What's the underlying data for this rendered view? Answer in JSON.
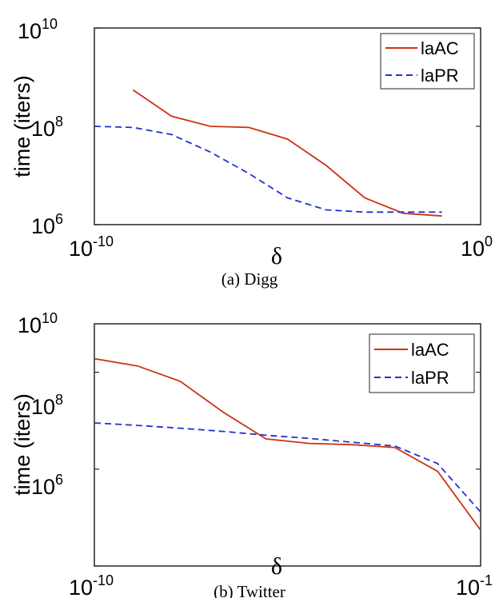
{
  "chart_data": [
    {
      "type": "line",
      "caption": "(a) Digg",
      "xlabel": "δ",
      "ylabel": "time (iters)",
      "xscale": "log",
      "yscale": "log",
      "xlim": [
        1e-10,
        1
      ],
      "ylim": [
        1000000.0,
        10000000000.0
      ],
      "xtick_labels": [
        {
          "base": "10",
          "exp": "-10"
        },
        {
          "base": "10",
          "exp": "0"
        }
      ],
      "ytick_labels": [
        {
          "base": "10",
          "exp": "10"
        },
        {
          "base": "10",
          "exp": "8"
        },
        {
          "base": "10",
          "exp": "6"
        }
      ],
      "legend_position": "top-right",
      "series": [
        {
          "name": "laAC",
          "color": "#cc3311",
          "dash": "solid",
          "x": [
            1e-09,
            1e-08,
            1e-07,
            1e-06,
            1e-05,
            0.0001,
            0.001,
            0.01,
            0.1
          ],
          "y": [
            550000000.0,
            160000000.0,
            100000000.0,
            95000000.0,
            55000000.0,
            16000000.0,
            3500000.0,
            1700000.0,
            1500000.0
          ]
        },
        {
          "name": "laPR",
          "color": "#2233cc",
          "dash": "dashed",
          "x": [
            1e-10,
            1e-09,
            1e-08,
            1e-07,
            1e-06,
            1e-05,
            0.0001,
            0.001,
            0.01,
            0.1
          ],
          "y": [
            100000000.0,
            95000000.0,
            68000000.0,
            30000000.0,
            11000000.0,
            3500000.0,
            2000000.0,
            1800000.0,
            1800000.0,
            1800000.0
          ]
        }
      ]
    },
    {
      "type": "line",
      "caption": "(b) Twitter",
      "xlabel": "δ",
      "ylabel": "time (iters)",
      "xscale": "log",
      "yscale": "log",
      "xlim": [
        1e-10,
        0.1
      ],
      "ylim": [
        100000.0,
        10000000000.0
      ],
      "xtick_labels": [
        {
          "base": "10",
          "exp": "-10"
        },
        {
          "base": "10",
          "exp": "-1"
        }
      ],
      "ytick_labels": [
        {
          "base": "10",
          "exp": "10"
        },
        {
          "base": "10",
          "exp": "8"
        },
        {
          "base": "10",
          "exp": "6"
        }
      ],
      "legend_position": "top-right",
      "series": [
        {
          "name": "laAC",
          "color": "#cc3311",
          "dash": "solid",
          "x": [
            1e-10,
            1e-09,
            1e-08,
            1e-07,
            1e-06,
            1e-05,
            0.0001,
            0.001,
            0.01,
            0.1
          ],
          "y": [
            1900000000.0,
            1350000000.0,
            650000000.0,
            150000000.0,
            42000000.0,
            34000000.0,
            32000000.0,
            28000000.0,
            9000000.0,
            550000.0
          ]
        },
        {
          "name": "laPR",
          "color": "#2233cc",
          "dash": "dashed",
          "x": [
            1e-10,
            1e-09,
            1e-08,
            1e-07,
            1e-06,
            1e-05,
            0.0001,
            0.001,
            0.01,
            0.1
          ],
          "y": [
            90000000.0,
            80000000.0,
            70000000.0,
            60000000.0,
            50000000.0,
            43000000.0,
            36000000.0,
            30000000.0,
            13000000.0,
            1300000.0
          ]
        }
      ]
    }
  ]
}
